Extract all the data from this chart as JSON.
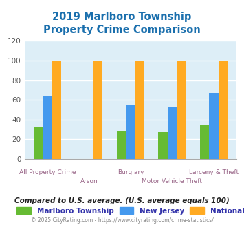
{
  "title": "2019 Marlboro Township\nProperty Crime Comparison",
  "title_color": "#1a6fad",
  "categories": [
    "All Property Crime",
    "Arson",
    "Burglary",
    "Motor Vehicle Theft",
    "Larceny & Theft"
  ],
  "series": {
    "Marlboro Township": [
      33,
      0,
      28,
      27,
      35
    ],
    "New Jersey": [
      64,
      0,
      55,
      53,
      67
    ],
    "National": [
      100,
      100,
      100,
      100,
      100
    ]
  },
  "colors": {
    "Marlboro Township": "#66bb33",
    "New Jersey": "#4499ee",
    "National": "#ffaa22"
  },
  "ylim": [
    0,
    120
  ],
  "yticks": [
    0,
    20,
    40,
    60,
    80,
    100,
    120
  ],
  "plot_bg_color": "#ddeef7",
  "grid_color": "#ffffff",
  "footnote": "Compared to U.S. average. (U.S. average equals 100)",
  "copyright": "© 2025 CityRating.com - https://www.cityrating.com/crime-statistics/",
  "bar_width": 0.22,
  "series_names": [
    "Marlboro Township",
    "New Jersey",
    "National"
  ],
  "xlabel_color": "#996688",
  "legend_text_color": "#3333aa"
}
